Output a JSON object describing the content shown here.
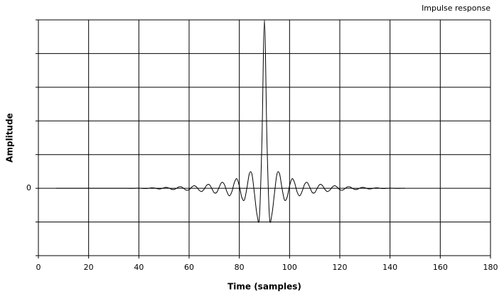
{
  "chart_data": {
    "type": "line",
    "title": "Impulse response",
    "x_label": "Time (samples)",
    "y_label": "Amplitude",
    "x": [
      7,
      8,
      9,
      10,
      11,
      12,
      13,
      14,
      15,
      16,
      17,
      18,
      19,
      20,
      21,
      22,
      23,
      24,
      25,
      26,
      27,
      28,
      29,
      30,
      31,
      32,
      33,
      34,
      35,
      36,
      37,
      38,
      39,
      40,
      41,
      42,
      43,
      44,
      45,
      46,
      47,
      48,
      49,
      50,
      51,
      52,
      53,
      54,
      55,
      56,
      57,
      58,
      59,
      60,
      61,
      62,
      63,
      64,
      65,
      66,
      67,
      68,
      69,
      70,
      71,
      72,
      73,
      74,
      75,
      76,
      77,
      78,
      79,
      80,
      81,
      82,
      83,
      84,
      85,
      86,
      87,
      88,
      89,
      90,
      91,
      92,
      93,
      94,
      95,
      96,
      97,
      98,
      99,
      100,
      101,
      102,
      103,
      104,
      105,
      106,
      107,
      108,
      109,
      110,
      111,
      112,
      113,
      114,
      115,
      116,
      117,
      118,
      119,
      120,
      121,
      122,
      123,
      124,
      125,
      126,
      127,
      128,
      129,
      130,
      131,
      132,
      133,
      134,
      135,
      136,
      137,
      138,
      139,
      140,
      141,
      142,
      143,
      144,
      145,
      146
    ],
    "values": [
      0,
      0,
      0,
      0,
      0,
      0,
      0,
      0,
      0,
      0,
      0,
      0,
      0,
      0,
      0,
      0,
      0,
      0,
      0,
      0,
      0,
      0,
      0,
      0,
      0,
      0,
      0,
      0.001,
      0.001,
      -0.001,
      -0.003,
      -0.001,
      0.004,
      0.005,
      0,
      -0.007,
      -0.008,
      0.003,
      0.013,
      0.01,
      -0.008,
      -0.02,
      -0.01,
      0.016,
      0.028,
      0.007,
      -0.028,
      -0.035,
      0,
      0.042,
      0.041,
      -0.013,
      -0.06,
      -0.042,
      0.032,
      0.078,
      0.037,
      -0.057,
      -0.097,
      -0.024,
      0.09,
      0.112,
      0,
      -0.13,
      -0.121,
      0.037,
      0.175,
      0.121,
      -0.091,
      -0.227,
      -0.107,
      0.166,
      0.284,
      0.071,
      -0.273,
      -0.348,
      0,
      0.434,
      0.428,
      -0.14,
      -0.76,
      -0.852,
      1.405,
      5.0,
      1.405,
      -0.852,
      -0.76,
      -0.14,
      0.428,
      0.434,
      0,
      -0.348,
      -0.273,
      0.071,
      0.284,
      0.166,
      -0.107,
      -0.227,
      -0.091,
      0.121,
      0.175,
      0.037,
      -0.121,
      -0.13,
      0,
      0.112,
      0.09,
      -0.024,
      -0.097,
      -0.057,
      0.037,
      0.078,
      0.032,
      -0.042,
      -0.06,
      -0.013,
      0.041,
      0.042,
      0,
      -0.035,
      -0.028,
      0.007,
      0.028,
      0.016,
      -0.01,
      -0.02,
      -0.008,
      0.01,
      0.013,
      0.003,
      -0.008,
      -0.007,
      0,
      0.005,
      0.004,
      -0.001,
      -0.003,
      -0.001,
      0.001,
      0.001
    ],
    "color": "#000000",
    "xlim": [
      0,
      180
    ],
    "xticks": [
      0,
      20,
      40,
      60,
      80,
      100,
      120,
      140,
      160,
      180
    ],
    "ylim": [
      -2,
      5
    ],
    "yticks": [
      0
    ],
    "ygrid": [
      -2,
      -1,
      0,
      1,
      2,
      3,
      4,
      5
    ],
    "grid": true
  }
}
